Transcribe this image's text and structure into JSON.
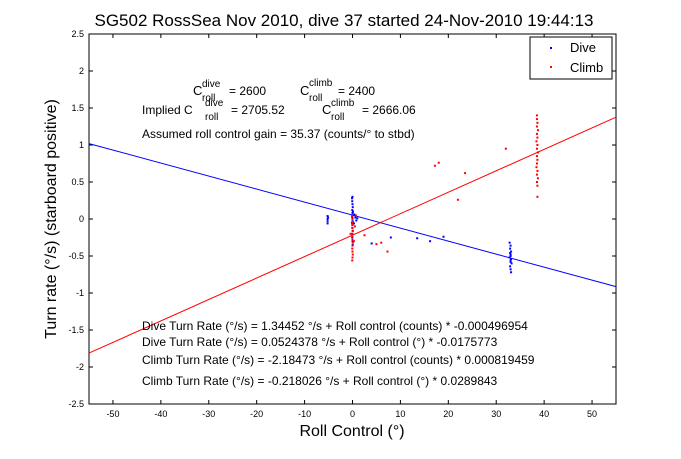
{
  "chart_data": {
    "type": "scatter",
    "title": "SG502 RossSea Nov 2010, dive 37 started 24-Nov-2010 19:44:13",
    "xlabel": "Roll Control (°)",
    "ylabel": "Turn rate (°/s) (starboard positive)",
    "xlim": [
      -55,
      55
    ],
    "ylim": [
      -2.5,
      2.5
    ],
    "xticks": [
      -50,
      -40,
      -30,
      -20,
      -10,
      0,
      10,
      20,
      30,
      40,
      50
    ],
    "yticks": [
      -2.5,
      -2,
      -1.5,
      -1,
      -0.5,
      0,
      0.5,
      1,
      1.5,
      2,
      2.5
    ],
    "grid": false,
    "legend": {
      "location": "top-right",
      "entries": [
        "Dive",
        "Climb"
      ]
    },
    "series": [
      {
        "name": "Dive",
        "color": "#0000ff",
        "points": [
          [
            -5.2,
            -0.06
          ],
          [
            -5.2,
            -0.03
          ],
          [
            -5.2,
            0.0
          ],
          [
            -5.1,
            0.02
          ],
          [
            -5.2,
            0.04
          ],
          [
            -0.1,
            0.28
          ],
          [
            -0.05,
            0.24
          ],
          [
            0.0,
            0.2
          ],
          [
            0.05,
            0.16
          ],
          [
            -0.05,
            0.12
          ],
          [
            0.0,
            0.08
          ],
          [
            0.05,
            0.05
          ],
          [
            -0.05,
            0.02
          ],
          [
            0.0,
            -0.01
          ],
          [
            0.05,
            -0.04
          ],
          [
            0.0,
            -0.08
          ],
          [
            -0.05,
            -0.12
          ],
          [
            0.05,
            -0.16
          ],
          [
            0.0,
            -0.2
          ],
          [
            -0.05,
            -0.25
          ],
          [
            0.0,
            -0.3
          ],
          [
            0.05,
            -0.35
          ],
          [
            0.0,
            0.3
          ],
          [
            0.1,
            0.1
          ],
          [
            -0.1,
            -0.05
          ],
          [
            0.6,
            0.02
          ],
          [
            0.8,
            -0.02
          ],
          [
            1.0,
            0.01
          ],
          [
            0.3,
            -0.06
          ],
          [
            0.4,
            0.06
          ],
          [
            4.0,
            -0.33
          ],
          [
            8.0,
            -0.25
          ],
          [
            13.5,
            -0.26
          ],
          [
            16.2,
            -0.3
          ],
          [
            19.0,
            -0.24
          ],
          [
            32.8,
            -0.32
          ],
          [
            33.0,
            -0.36
          ],
          [
            32.9,
            -0.4
          ],
          [
            33.1,
            -0.44
          ],
          [
            33.0,
            -0.48
          ],
          [
            32.8,
            -0.52
          ],
          [
            33.0,
            -0.56
          ],
          [
            33.2,
            -0.6
          ],
          [
            32.9,
            -0.64
          ],
          [
            33.0,
            -0.68
          ],
          [
            33.1,
            -0.72
          ],
          [
            33.0,
            -0.5
          ],
          [
            32.9,
            -0.46
          ],
          [
            33.1,
            -0.54
          ],
          [
            33.0,
            -0.58
          ]
        ]
      },
      {
        "name": "Climb",
        "color": "#ff0000",
        "points": [
          [
            -0.1,
            0.04
          ],
          [
            0.0,
            0.0
          ],
          [
            0.05,
            -0.04
          ],
          [
            -0.05,
            -0.08
          ],
          [
            0.0,
            -0.12
          ],
          [
            0.05,
            -0.16
          ],
          [
            0.0,
            -0.2
          ],
          [
            -0.05,
            -0.24
          ],
          [
            0.0,
            -0.28
          ],
          [
            0.05,
            -0.32
          ],
          [
            0.0,
            -0.36
          ],
          [
            -0.05,
            -0.4
          ],
          [
            0.0,
            -0.44
          ],
          [
            0.05,
            -0.48
          ],
          [
            0.0,
            -0.52
          ],
          [
            -0.05,
            -0.56
          ],
          [
            0.3,
            -0.3
          ],
          [
            0.5,
            -0.1
          ],
          [
            0.7,
            0.05
          ],
          [
            -0.4,
            -0.2
          ],
          [
            2.5,
            -0.22
          ],
          [
            5.0,
            -0.34
          ],
          [
            6.0,
            -0.32
          ],
          [
            7.3,
            -0.44
          ],
          [
            17.2,
            0.72
          ],
          [
            18.0,
            0.76
          ],
          [
            22.0,
            0.26
          ],
          [
            23.5,
            0.62
          ],
          [
            32.0,
            0.95
          ],
          [
            38.5,
            1.35
          ],
          [
            38.6,
            1.3
          ],
          [
            38.5,
            1.25
          ],
          [
            38.7,
            1.2
          ],
          [
            38.5,
            1.15
          ],
          [
            38.6,
            1.1
          ],
          [
            38.4,
            1.05
          ],
          [
            38.6,
            1.0
          ],
          [
            38.5,
            0.95
          ],
          [
            38.7,
            0.9
          ],
          [
            38.5,
            0.85
          ],
          [
            38.6,
            0.8
          ],
          [
            38.5,
            0.75
          ],
          [
            38.4,
            0.7
          ],
          [
            38.6,
            0.65
          ],
          [
            38.5,
            0.6
          ],
          [
            38.7,
            0.55
          ],
          [
            38.5,
            0.5
          ],
          [
            38.6,
            0.45
          ],
          [
            38.6,
            0.3
          ],
          [
            38.5,
            1.4
          ]
        ]
      }
    ],
    "fit_lines": [
      {
        "series": "Dive",
        "color": "#0000ff",
        "intercept": 0.0524378,
        "slope": -0.0175773
      },
      {
        "series": "Climb",
        "color": "#ff0000",
        "intercept": -0.218026,
        "slope": 0.0289843
      }
    ],
    "annotations": {
      "c_dive": "C",
      "c_dive_sup": "dive",
      "c_dive_sub": "roll",
      "c_dive_value": "= 2600",
      "c_climb": "C",
      "c_climb_sup": "climb",
      "c_climb_sub": "roll",
      "c_climb_value": "= 2400",
      "implied": "Implied C",
      "implied_dive_sup": "dive",
      "implied_dive_sub": "roll",
      "implied_dive_value": "= 2705.52",
      "implied_c2": "C",
      "implied_climb_sup": "climb",
      "implied_climb_sub": "roll",
      "implied_climb_value": "= 2666.06",
      "assumed_gain": "Assumed roll control gain = 35.37 (counts/° to stbd)",
      "eq_dive_counts": "Dive Turn Rate (°/s) = 1.34452 °/s + Roll control (counts) * -0.000496954",
      "eq_dive_deg": "Dive Turn Rate (°/s) = 0.0524378 °/s + Roll control (°) * -0.0175773",
      "eq_climb_counts": "Climb Turn Rate (°/s) = -2.18473 °/s + Roll control (counts) * 0.000819459",
      "eq_climb_deg": "Climb Turn Rate (°/s) = -0.218026 °/s + Roll control (°) * 0.0289843"
    }
  }
}
